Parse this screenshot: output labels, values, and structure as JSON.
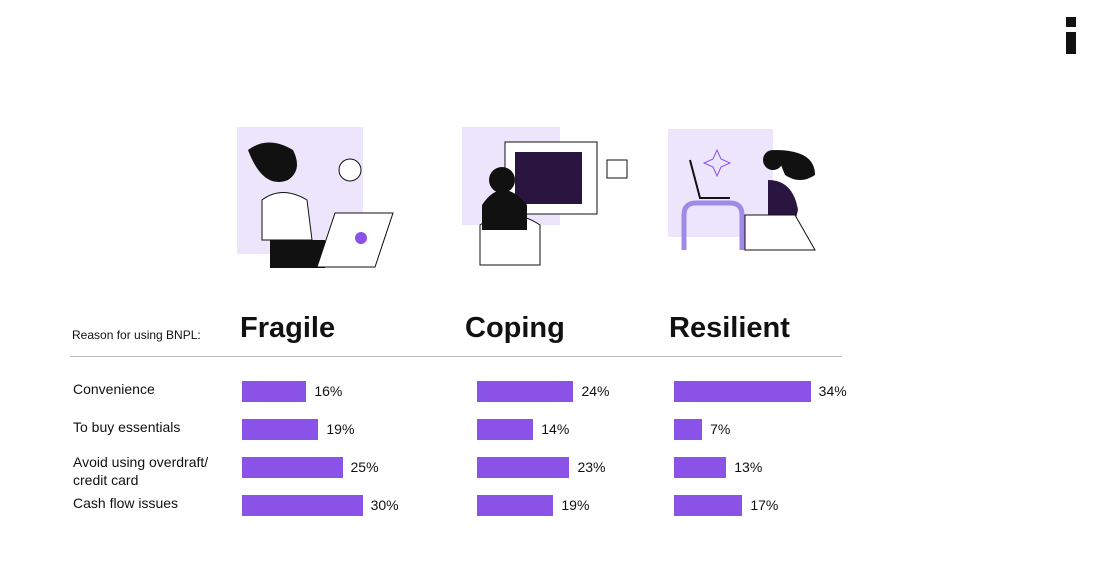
{
  "chart_data": {
    "type": "bar",
    "label": "Reason for using BNPL:",
    "categories": [
      "Convenience",
      "To buy essentials",
      "Avoid using overdraft/ credit card",
      "Cash flow issues"
    ],
    "series": [
      {
        "name": "Fragile",
        "color": "#8b52e8",
        "values": [
          16,
          19,
          25,
          30
        ],
        "value_labels": [
          "16%",
          "19%",
          "25%",
          "30%"
        ]
      },
      {
        "name": "Coping",
        "color": "#8b52e8",
        "values": [
          24,
          14,
          23,
          19
        ],
        "value_labels": [
          "24%",
          "14%",
          "23%",
          "19%"
        ]
      },
      {
        "name": "Resilient",
        "color": "#8b52e8",
        "values": [
          34,
          7,
          13,
          17
        ],
        "value_labels": [
          "34%",
          "7%",
          "13%",
          "17%"
        ]
      }
    ]
  }
}
